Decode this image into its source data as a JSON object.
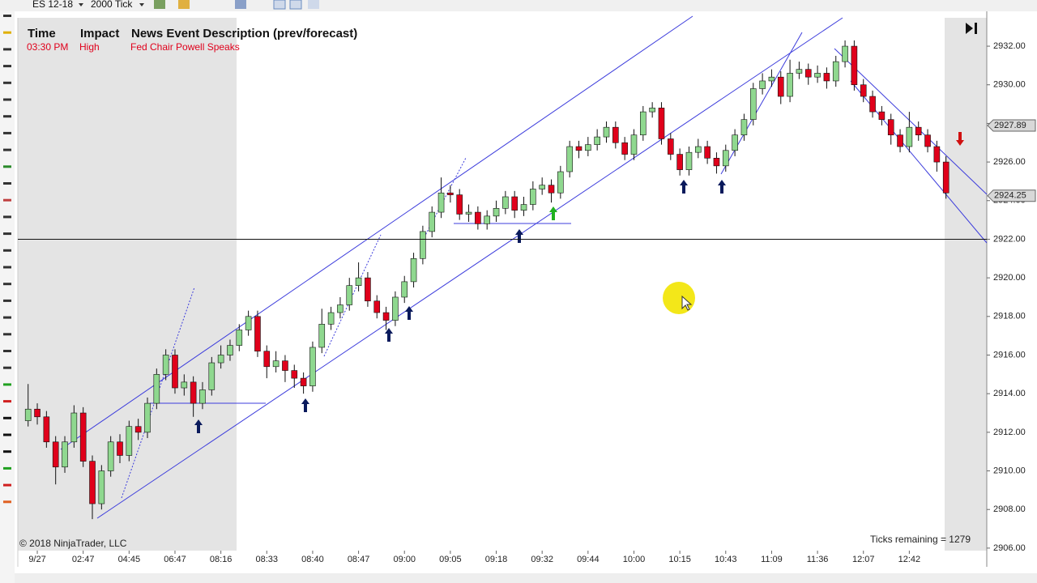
{
  "toolbar": {
    "instrument": "ES 12-18",
    "interval": "2000 Tick"
  },
  "news": {
    "headers": [
      "Time",
      "Impact",
      "News Event Description (prev/forecast)"
    ],
    "row": [
      "03:30 PM",
      "High",
      "Fed Chair Powell Speaks"
    ]
  },
  "copyright": "© 2018 NinjaTrader, LLC",
  "ticks_remaining": "Ticks remaining = 1279",
  "chart_data": {
    "type": "candlestick",
    "up_color": "#8fd88f",
    "down_color": "#e0001b",
    "categories": [
      null,
      "9/27",
      null,
      null,
      null,
      null,
      "02:47",
      null,
      null,
      null,
      null,
      "04:45",
      null,
      null,
      null,
      null,
      "06:47",
      null,
      null,
      null,
      null,
      "08:16",
      null,
      null,
      null,
      null,
      "08:33",
      null,
      null,
      null,
      null,
      "08:40",
      null,
      null,
      null,
      null,
      "08:47",
      null,
      null,
      null,
      null,
      "09:00",
      null,
      null,
      null,
      null,
      "09:05",
      null,
      null,
      null,
      null,
      "09:18",
      null,
      null,
      null,
      null,
      "09:32",
      null,
      null,
      null,
      null,
      "09:44",
      null,
      null,
      null,
      null,
      "10:00",
      null,
      null,
      null,
      null,
      "10:15",
      null,
      null,
      null,
      null,
      "10:43",
      null,
      null,
      null,
      null,
      "11:09",
      null,
      null,
      null,
      null,
      "11:36",
      null,
      null,
      null,
      null,
      "12:07",
      null,
      null,
      null,
      null,
      "12:42",
      null,
      null,
      null,
      null
    ],
    "open": [
      2912.6,
      2913.2,
      2912.8,
      2911.5,
      2910.2,
      2911.5,
      2913,
      2910.5,
      2908.3,
      2910,
      2911.5,
      2910.8,
      2912.3,
      2912,
      2913.5,
      2915,
      2916,
      2914.3,
      2914.6,
      2913.5,
      2914.2,
      2915.6,
      2916,
      2916.5,
      2917.3,
      2918,
      2916.2,
      2915.4,
      2915.7,
      2915.2,
      2914.8,
      2914.4,
      2916.4,
      2917.6,
      2918.2,
      2918.6,
      2919.6,
      2920,
      2918.8,
      2918.2,
      2917.8,
      2919,
      2919.8,
      2921,
      2922.4,
      2923.4,
      2924.4,
      2924.3,
      2923.3,
      2923.4,
      2922.8,
      2923.2,
      2923.6,
      2924.2,
      2923.5,
      2923.8,
      2924.6,
      2924.8,
      2924.4,
      2925.5,
      2926.8,
      2926.6,
      2926.9,
      2927.3,
      2927.8,
      2927,
      2926.4,
      2927.4,
      2928.6,
      2928.8,
      2927.2,
      2926.4,
      2925.6,
      2926.5,
      2926.8,
      2926.2,
      2925.8,
      2926.6,
      2927.4,
      2928.2,
      2929.8,
      2930.2,
      2930.4,
      2929.4,
      2930.6,
      2930.8,
      2930.4,
      2930.6,
      2930.2,
      2931.2,
      2932,
      2930,
      2929.4,
      2928.6,
      2928.2,
      2927.4,
      2926.8,
      2927.8,
      2927.4,
      2926.8,
      2926
    ],
    "high": [
      2914.5,
      2913.5,
      2913.1,
      2911.8,
      2911.8,
      2913.4,
      2913.3,
      2910.8,
      2910.3,
      2911.8,
      2911.9,
      2912.6,
      2912.7,
      2913.8,
      2915.3,
      2916.3,
      2916.3,
      2915,
      2914.9,
      2914.6,
      2915.9,
      2916.5,
      2916.8,
      2917.6,
      2918.3,
      2918.3,
      2916.5,
      2916.2,
      2916,
      2915.5,
      2915.1,
      2916.7,
      2918.4,
      2918.5,
      2919,
      2920,
      2920.8,
      2920.3,
      2919.1,
      2918.5,
      2919.3,
      2920.1,
      2921.3,
      2922.7,
      2923.7,
      2925.2,
      2924.8,
      2924.6,
      2923.8,
      2923.7,
      2923.5,
      2924,
      2924.5,
      2924.5,
      2924.2,
      2925,
      2925.2,
      2925.1,
      2925.8,
      2927.1,
      2927.1,
      2927.3,
      2927.7,
      2928.1,
      2928.1,
      2927.3,
      2927.7,
      2928.9,
      2929.1,
      2929.1,
      2927.5,
      2926.7,
      2926.8,
      2927.2,
      2927.1,
      2926.5,
      2926.9,
      2927.7,
      2928.5,
      2930.1,
      2930.6,
      2930.8,
      2930.7,
      2931.3,
      2931.2,
      2931.1,
      2931,
      2930.9,
      2931.5,
      2932.3,
      2932.3,
      2930.3,
      2929.7,
      2928.9,
      2928.5,
      2927.7,
      2928.6,
      2928.1,
      2927.7,
      2927.1,
      2926.3
    ],
    "low": [
      2912.3,
      2912.4,
      2911.2,
      2909.3,
      2909.9,
      2911.2,
      2910.2,
      2907.5,
      2908,
      2909.7,
      2910.4,
      2910.5,
      2911.6,
      2911.7,
      2913.2,
      2914.7,
      2914,
      2913.9,
      2912.8,
      2913.2,
      2913.9,
      2915.3,
      2915.7,
      2916.2,
      2917,
      2915.9,
      2914.8,
      2915.1,
      2914.6,
      2914.3,
      2914,
      2914.1,
      2916.1,
      2917.3,
      2917.9,
      2918.3,
      2919.3,
      2918.5,
      2917.9,
      2917.3,
      2917.5,
      2918.7,
      2919.5,
      2920.7,
      2922.1,
      2923.1,
      2923.9,
      2923,
      2922.9,
      2922.5,
      2922.5,
      2922.9,
      2923.3,
      2923.1,
      2923.2,
      2923.5,
      2924.3,
      2923.9,
      2924.1,
      2925.2,
      2926.2,
      2926.3,
      2926.6,
      2927,
      2926.7,
      2926.1,
      2926.1,
      2927.1,
      2928.3,
      2926.9,
      2926.1,
      2925.3,
      2925.3,
      2926.2,
      2925.9,
      2925.4,
      2925.5,
      2926.3,
      2927.1,
      2927.9,
      2929.5,
      2929.9,
      2929,
      2929.1,
      2930.3,
      2930,
      2930.1,
      2929.8,
      2929.9,
      2930.9,
      2929.7,
      2929.1,
      2928.3,
      2927.9,
      2926.9,
      2926.5,
      2926.5,
      2927.1,
      2926.5,
      2925.5,
      2924.1
    ],
    "close": [
      2913.2,
      2912.8,
      2911.5,
      2910.2,
      2911.5,
      2913,
      2910.5,
      2908.3,
      2910,
      2911.5,
      2910.8,
      2912.3,
      2912,
      2913.5,
      2915,
      2916,
      2914.3,
      2914.6,
      2913.5,
      2914.2,
      2915.6,
      2916,
      2916.5,
      2917.3,
      2918,
      2916.2,
      2915.4,
      2915.7,
      2915.2,
      2914.8,
      2914.4,
      2916.4,
      2917.6,
      2918.2,
      2918.6,
      2919.6,
      2920,
      2918.8,
      2918.2,
      2917.8,
      2919,
      2919.8,
      2921,
      2922.4,
      2923.4,
      2924.4,
      2924.3,
      2923.3,
      2923.4,
      2922.8,
      2923.2,
      2923.6,
      2924.2,
      2923.5,
      2923.8,
      2924.6,
      2924.8,
      2924.4,
      2925.5,
      2926.8,
      2926.6,
      2926.9,
      2927.3,
      2927.8,
      2927,
      2926.4,
      2927.4,
      2928.6,
      2928.8,
      2927.2,
      2926.4,
      2925.6,
      2926.5,
      2926.8,
      2926.2,
      2925.8,
      2926.6,
      2927.4,
      2928.2,
      2929.8,
      2930.2,
      2930.4,
      2929.4,
      2930.6,
      2930.8,
      2930.4,
      2930.6,
      2930.2,
      2931.2,
      2932,
      2930,
      2929.4,
      2928.6,
      2928.2,
      2927.4,
      2926.8,
      2927.8,
      2927.4,
      2926.8,
      2926,
      2924.4
    ],
    "ylim": [
      2905.87,
      2933.47
    ],
    "yticks": [
      {
        "value": 2906,
        "label": "2906.00"
      },
      {
        "value": 2908,
        "label": "2908.00"
      },
      {
        "value": 2910,
        "label": "2910.00"
      },
      {
        "value": 2912,
        "label": "2912.00"
      },
      {
        "value": 2914,
        "label": "2914.00"
      },
      {
        "value": 2916,
        "label": "2916.00"
      },
      {
        "value": 2918,
        "label": "2918.00"
      },
      {
        "value": 2920,
        "label": "2920.00"
      },
      {
        "value": 2922,
        "label": "2922.00"
      },
      {
        "value": 2924,
        "label": "2924.00"
      },
      {
        "value": 2926,
        "label": "2926.00"
      },
      {
        "value": 2928,
        "label": "2928.00"
      },
      {
        "value": 2930,
        "label": "2930.00"
      },
      {
        "value": 2932,
        "label": "2932.00"
      }
    ],
    "price_markers": [
      2927.89,
      2924.25
    ],
    "horizontal_line": 2922
  }
}
